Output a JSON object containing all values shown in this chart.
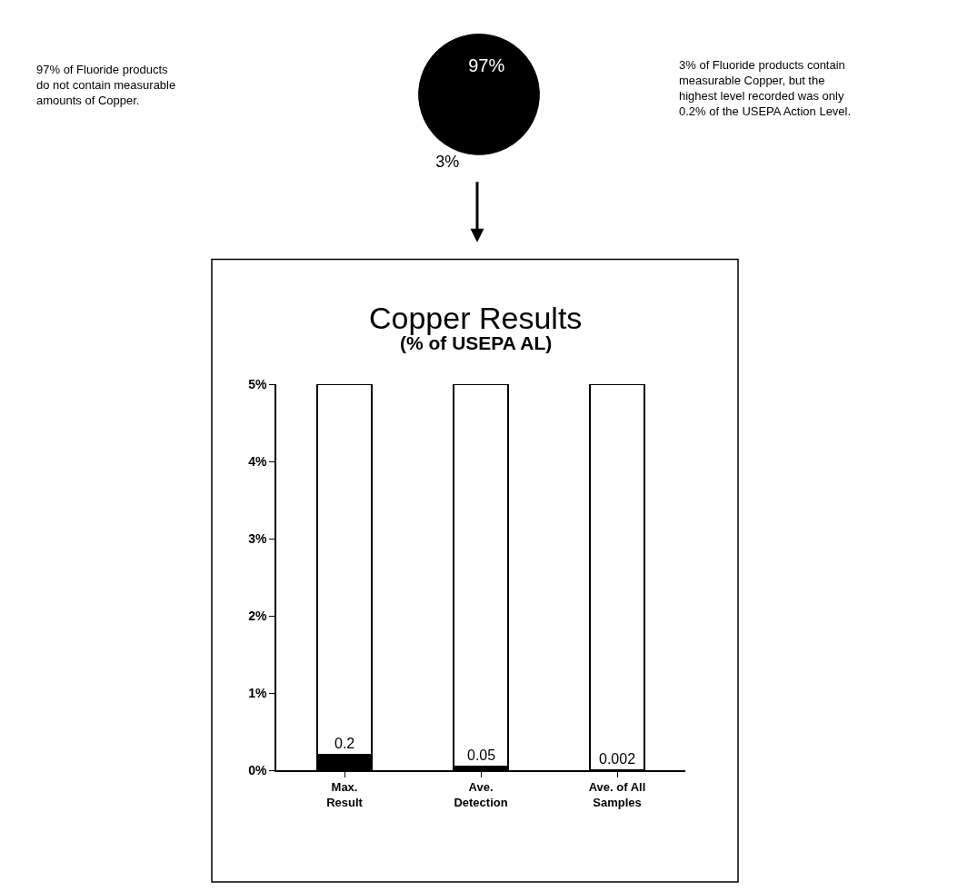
{
  "chart_data": [
    {
      "type": "pie",
      "categories": [
        null,
        null
      ],
      "values": [
        97,
        3
      ],
      "colors": [
        "#000000",
        "#000000"
      ],
      "value_labels": [
        "97%",
        "3%"
      ],
      "annotations": [
        "97% of Fluoride products\ndo not contain measurable\namounts of Copper.",
        "3% of Fluoride products contain\nmeasurable Copper, but the\nhighest level recorded was only\n0.2% of the USEPA Action Level."
      ]
    },
    {
      "type": "bar",
      "title": "Copper Results",
      "subtitle": "(% of USEPA AL)",
      "categories": [
        "Max.\nResult",
        "Ave.\nDetection",
        "Ave. of All\nSamples"
      ],
      "stacked": true,
      "series": [
        {
          "color": "#000000",
          "values": [
            0.2,
            0.05,
            0.002
          ],
          "data_labels": true
        },
        {
          "color": "#ffffff",
          "values": [
            4.8,
            4.95,
            4.998
          ]
        }
      ],
      "ylim": [
        0,
        5
      ],
      "yticks": [
        {
          "value": 0,
          "label": "0%"
        },
        {
          "value": 1,
          "label": "1%"
        },
        {
          "value": 2,
          "label": "2%"
        },
        {
          "value": 3,
          "label": "3%"
        },
        {
          "value": 4,
          "label": "4%"
        },
        {
          "value": 5,
          "label": "5%"
        }
      ]
    }
  ]
}
